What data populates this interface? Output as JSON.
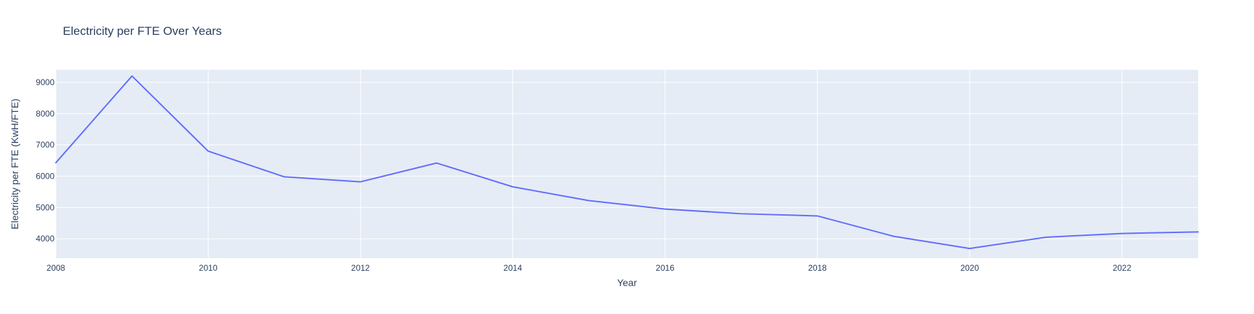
{
  "chart_data": {
    "type": "line",
    "title": "Electricity per FTE Over Years",
    "xlabel": "Year",
    "ylabel": "Electricity per FTE (KwH/FTE)",
    "xlim": [
      2008,
      2023
    ],
    "ylim": [
      3380,
      9400
    ],
    "x_ticks": [
      2008,
      2010,
      2012,
      2014,
      2016,
      2018,
      2020,
      2022
    ],
    "x_tick_labels": [
      "2008",
      "2010",
      "2012",
      "2014",
      "2016",
      "2018",
      "2020",
      "2022"
    ],
    "y_ticks": [
      4000,
      5000,
      6000,
      7000,
      8000,
      9000
    ],
    "y_tick_labels": [
      "4000",
      "5000",
      "6000",
      "7000",
      "8000",
      "9000"
    ],
    "grid": true,
    "legend": "none",
    "series": [
      {
        "x": [
          2008,
          2009,
          2010,
          2011,
          2012,
          2013,
          2014,
          2015,
          2016,
          2017,
          2018,
          2019,
          2020,
          2021,
          2022,
          2023
        ],
        "y": [
          6430,
          9200,
          6800,
          5980,
          5820,
          6420,
          5660,
          5220,
          4950,
          4800,
          4730,
          4080,
          3690,
          4050,
          4170,
          4220
        ],
        "color": "#636efa"
      }
    ],
    "colors": {
      "plot_background": "#e5ecf6",
      "grid": "#ffffff",
      "text": "#2a3f5f",
      "line": "#636efa"
    }
  }
}
